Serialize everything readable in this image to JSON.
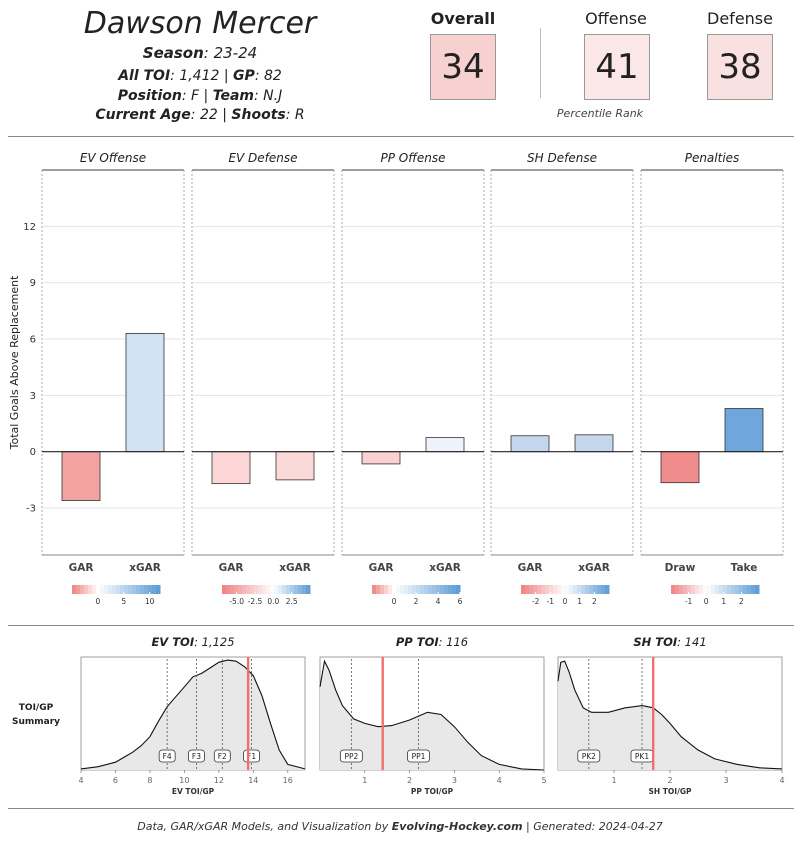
{
  "header": {
    "name": "Dawson Mercer",
    "season_label": "Season",
    "season": "23-24",
    "toi_label": "All TOI",
    "toi": "1,412",
    "gp_label": "GP",
    "gp": "82",
    "position_label": "Position",
    "position": "F",
    "team_label": "Team",
    "team": "N.J",
    "age_label": "Current Age",
    "age": "22",
    "shoots_label": "Shoots",
    "shoots": "R"
  },
  "ranks": {
    "overall_label": "Overall",
    "overall": "34",
    "offense_label": "Offense",
    "offense": "41",
    "defense_label": "Defense",
    "defense": "38",
    "caption": "Percentile Rank"
  },
  "footer": {
    "prefix": "Data, GAR/xGAR Models, and Visualization by ",
    "brand": "Evolving-Hockey.com",
    "suffix": " | Generated: 2024-04-27"
  },
  "colors": {
    "neg_strong": "#f08080",
    "pos_strong": "#5b9bd5",
    "neutral": "#ffffff"
  },
  "chart_data": [
    {
      "type": "bar",
      "ylabel": "Total Goals Above Replacement",
      "ylim": [
        -5.5,
        15
      ],
      "yticks": [
        -3,
        0,
        3,
        6,
        9,
        12
      ],
      "grid": true,
      "panels": [
        {
          "title": "EV Offense",
          "categories": [
            "GAR",
            "xGAR"
          ],
          "values": [
            -2.6,
            6.3
          ],
          "colors": [
            "#f4a3a3",
            "#d3e2f4"
          ],
          "scale": {
            "ticks": [
              "0",
              "5",
              "10"
            ],
            "tick_values": [
              0,
              5,
              10
            ],
            "min": -5,
            "max": 12
          }
        },
        {
          "title": "EV Defense",
          "categories": [
            "GAR",
            "xGAR"
          ],
          "values": [
            -1.7,
            -1.5
          ],
          "colors": [
            "#fcd6d6",
            "#fcd9d9"
          ],
          "scale": {
            "ticks": [
              "-5.0",
              "-2.5",
              "0.0",
              "2.5"
            ],
            "tick_values": [
              -5,
              -2.5,
              0,
              2.5
            ],
            "min": -7,
            "max": 5
          }
        },
        {
          "title": "PP Offense",
          "categories": [
            "GAR",
            "xGAR"
          ],
          "values": [
            -0.65,
            0.75
          ],
          "colors": [
            "#fbd0d0",
            "#eef3fb"
          ],
          "scale": {
            "ticks": [
              "0",
              "2",
              "4",
              "6"
            ],
            "tick_values": [
              0,
              2,
              4,
              6
            ],
            "min": -2,
            "max": 6
          }
        },
        {
          "title": "SH Defense",
          "categories": [
            "GAR",
            "xGAR"
          ],
          "values": [
            0.85,
            0.9
          ],
          "colors": [
            "#c4d7ef",
            "#c4d7ef"
          ],
          "scale": {
            "ticks": [
              "-2",
              "-1",
              "0",
              "1",
              "2"
            ],
            "tick_values": [
              -2,
              -1,
              0,
              1,
              2
            ],
            "min": -3,
            "max": 3
          }
        },
        {
          "title": "Penalties",
          "categories": [
            "Draw",
            "Take"
          ],
          "values": [
            -1.65,
            2.3
          ],
          "colors": [
            "#f08c8c",
            "#6fa6dc"
          ],
          "scale": {
            "ticks": [
              "-1",
              "0",
              "1",
              "2"
            ],
            "tick_values": [
              -1,
              0,
              1,
              2
            ],
            "min": -2,
            "max": 3
          }
        }
      ]
    },
    {
      "type": "area",
      "row_label": "TOI/GP\nSummary",
      "panels": [
        {
          "label": "EV TOI",
          "value": "1,125",
          "xlabel": "EV TOI/GP",
          "xlim": [
            4,
            17
          ],
          "xticks": [
            4,
            6,
            8,
            10,
            12,
            14,
            16
          ],
          "curve_x": [
            4,
            5,
            6,
            7,
            7.5,
            8,
            8.5,
            9,
            9.5,
            10,
            10.5,
            11,
            11.5,
            12,
            12.5,
            13,
            13.5,
            14,
            14.5,
            15,
            15.5,
            16,
            17
          ],
          "curve_y": [
            0.01,
            0.03,
            0.07,
            0.16,
            0.22,
            0.3,
            0.44,
            0.57,
            0.66,
            0.75,
            0.84,
            0.87,
            0.92,
            0.97,
            0.99,
            0.98,
            0.93,
            0.85,
            0.67,
            0.42,
            0.18,
            0.05,
            0.01
          ],
          "markers": [
            {
              "label": "F4",
              "x": 9.0
            },
            {
              "label": "F3",
              "x": 10.7
            },
            {
              "label": "F2",
              "x": 12.2
            },
            {
              "label": "F1",
              "x": 13.9
            }
          ],
          "player_value": 13.7
        },
        {
          "label": "PP TOI",
          "value": "116",
          "xlabel": "PP TOI/GP",
          "xlim": [
            0,
            5
          ],
          "xticks": [
            1,
            2,
            3,
            4,
            5
          ],
          "curve_x": [
            0,
            0.1,
            0.2,
            0.35,
            0.5,
            0.75,
            1.0,
            1.3,
            1.6,
            2.0,
            2.4,
            2.7,
            3.0,
            3.3,
            3.6,
            4.0,
            4.5,
            5.0
          ],
          "curve_y": [
            0.75,
            0.98,
            0.9,
            0.72,
            0.58,
            0.46,
            0.42,
            0.39,
            0.4,
            0.45,
            0.52,
            0.5,
            0.39,
            0.25,
            0.13,
            0.05,
            0.01,
            0.0
          ],
          "markers": [
            {
              "label": "PP2",
              "x": 0.7
            },
            {
              "label": "PP1",
              "x": 2.2
            }
          ],
          "player_value": 1.4
        },
        {
          "label": "SH TOI",
          "value": "141",
          "xlabel": "SH TOI/GP",
          "xlim": [
            0,
            4
          ],
          "xticks": [
            1,
            2,
            3,
            4
          ],
          "curve_x": [
            0,
            0.05,
            0.12,
            0.2,
            0.3,
            0.45,
            0.6,
            0.9,
            1.2,
            1.5,
            1.7,
            1.85,
            2.0,
            2.2,
            2.5,
            2.8,
            3.2,
            3.6,
            4.0
          ],
          "curve_y": [
            0.8,
            0.97,
            0.98,
            0.88,
            0.72,
            0.56,
            0.52,
            0.52,
            0.56,
            0.58,
            0.56,
            0.5,
            0.42,
            0.3,
            0.18,
            0.1,
            0.05,
            0.02,
            0.01
          ],
          "markers": [
            {
              "label": "PK2",
              "x": 0.55
            },
            {
              "label": "PK1",
              "x": 1.5
            }
          ],
          "player_value": 1.7
        }
      ]
    }
  ]
}
